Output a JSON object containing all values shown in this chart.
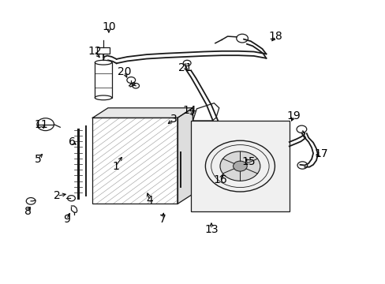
{
  "bg_color": "#ffffff",
  "line_color": "#1a1a1a",
  "fig_width": 4.89,
  "fig_height": 3.6,
  "dpi": 100,
  "label_fontsize": 10,
  "arrow_config": {
    "1": {
      "tp": [
        0.3,
        0.415
      ],
      "ae": [
        0.32,
        0.455
      ]
    },
    "2": {
      "tp": [
        0.148,
        0.31
      ],
      "ae": [
        0.178,
        0.318
      ]
    },
    "3": {
      "tp": [
        0.45,
        0.58
      ],
      "ae": [
        0.43,
        0.558
      ]
    },
    "4": {
      "tp": [
        0.388,
        0.295
      ],
      "ae": [
        0.38,
        0.33
      ]
    },
    "5": {
      "tp": [
        0.098,
        0.44
      ],
      "ae": [
        0.115,
        0.465
      ]
    },
    "6": {
      "tp": [
        0.188,
        0.5
      ],
      "ae": [
        0.203,
        0.485
      ]
    },
    "7": {
      "tp": [
        0.422,
        0.228
      ],
      "ae": [
        0.425,
        0.26
      ]
    },
    "8": {
      "tp": [
        0.072,
        0.255
      ],
      "ae": [
        0.082,
        0.28
      ]
    },
    "9": {
      "tp": [
        0.172,
        0.228
      ],
      "ae": [
        0.185,
        0.258
      ]
    },
    "10": {
      "tp": [
        0.282,
        0.905
      ],
      "ae": [
        0.282,
        0.875
      ]
    },
    "11": {
      "tp": [
        0.108,
        0.56
      ],
      "ae": [
        0.118,
        0.54
      ]
    },
    "12": {
      "tp": [
        0.245,
        0.82
      ],
      "ae": [
        0.263,
        0.79
      ]
    },
    "13": {
      "tp": [
        0.548,
        0.192
      ],
      "ae": [
        0.548,
        0.225
      ]
    },
    "14": {
      "tp": [
        0.492,
        0.61
      ],
      "ae": [
        0.505,
        0.585
      ]
    },
    "15": {
      "tp": [
        0.645,
        0.43
      ],
      "ae": [
        0.632,
        0.448
      ]
    },
    "16": {
      "tp": [
        0.572,
        0.368
      ],
      "ae": [
        0.58,
        0.395
      ]
    },
    "17": {
      "tp": [
        0.832,
        0.458
      ],
      "ae": [
        0.812,
        0.452
      ]
    },
    "18": {
      "tp": [
        0.715,
        0.872
      ],
      "ae": [
        0.7,
        0.848
      ]
    },
    "19": {
      "tp": [
        0.762,
        0.592
      ],
      "ae": [
        0.752,
        0.565
      ]
    },
    "20": {
      "tp": [
        0.322,
        0.748
      ],
      "ae": [
        0.332,
        0.718
      ]
    },
    "21": {
      "tp": [
        0.48,
        0.762
      ],
      "ae": [
        0.492,
        0.748
      ]
    }
  }
}
